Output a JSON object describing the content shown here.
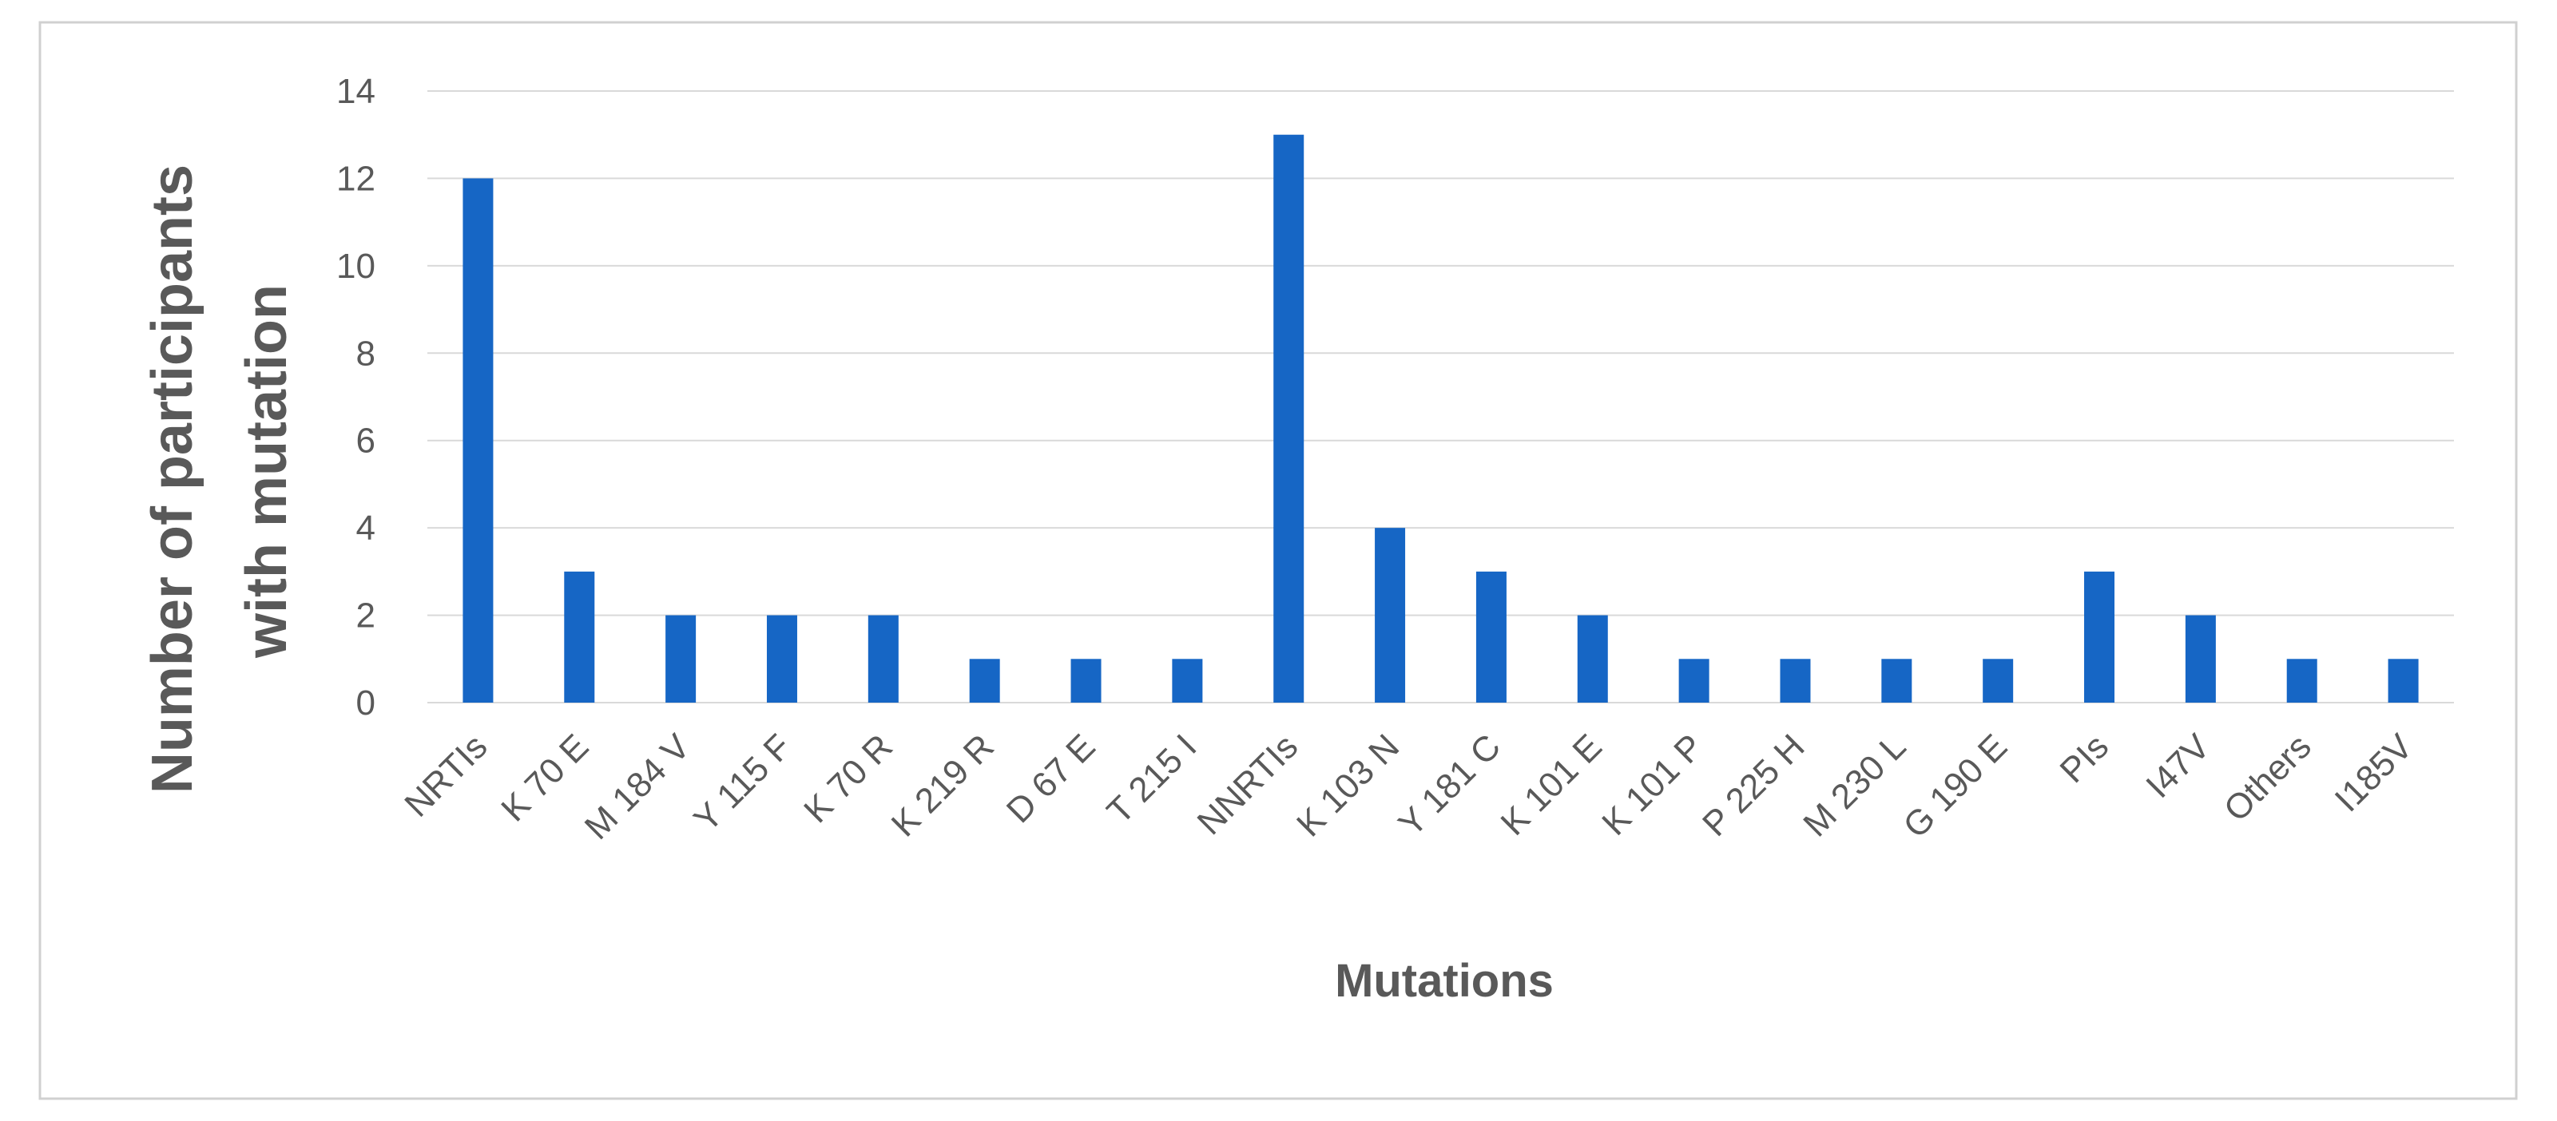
{
  "chart_data": {
    "type": "bar",
    "title": "",
    "xlabel": "Mutations",
    "ylabel_lines": [
      "Number of participants",
      "with mutation"
    ],
    "categories": [
      "NRTIs",
      "K 70 E",
      "M 184 V",
      "Y 115 F",
      "K 70 R",
      "K 219 R",
      "D 67 E",
      "T 215 I",
      "NNRTIs",
      "K 103 N",
      "Y 181 C",
      "K 101 E",
      "K 101 P",
      "P 225 H",
      "M 230 L",
      "G 190 E",
      "PIs",
      "I47V",
      "Others",
      "I185V"
    ],
    "values": [
      12,
      3,
      2,
      2,
      2,
      1,
      1,
      1,
      13,
      4,
      3,
      2,
      1,
      1,
      1,
      1,
      3,
      2,
      1,
      1
    ],
    "ylim": [
      0,
      14
    ],
    "yticks": [
      "0",
      "2",
      "4",
      "6",
      "8",
      "10",
      "12",
      "14"
    ],
    "grid": true,
    "legend": "none",
    "bar_color": "#1666c5"
  }
}
